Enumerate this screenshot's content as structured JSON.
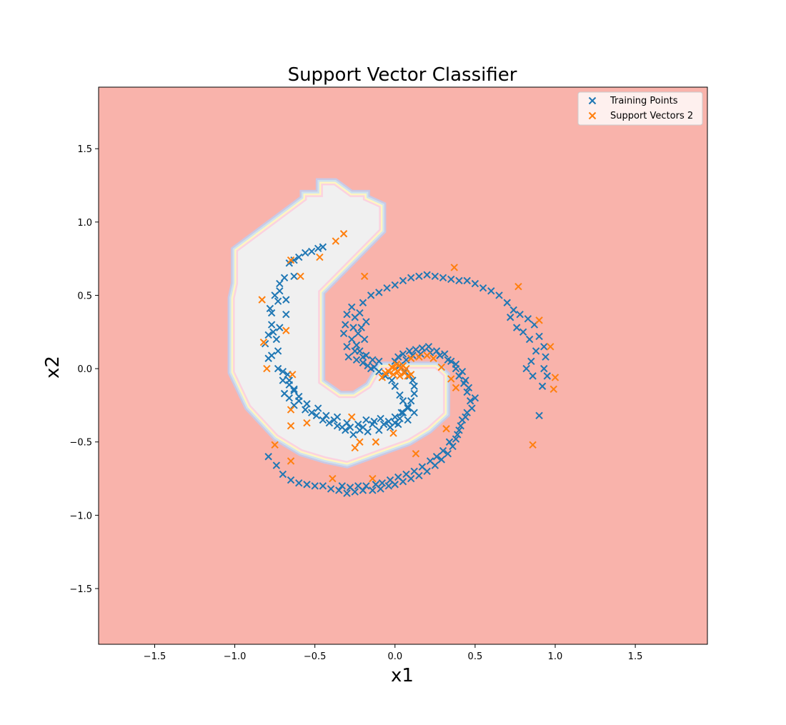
{
  "chart_data": {
    "type": "scatter",
    "title": "Support Vector Classifier",
    "xlabel": "x1",
    "ylabel": "x2",
    "xlim": [
      -1.85,
      1.95
    ],
    "ylim": [
      -1.88,
      1.92
    ],
    "xticks": [
      -1.5,
      -1.0,
      -0.5,
      0.0,
      0.5,
      1.0,
      1.5
    ],
    "yticks": [
      -1.5,
      -1.0,
      -0.5,
      0.0,
      0.5,
      1.0,
      1.5
    ],
    "xtick_labels": [
      "−1.5",
      "−1.0",
      "−0.5",
      "0.0",
      "0.5",
      "1.0",
      "1.5"
    ],
    "ytick_labels": [
      "−1.5",
      "−1.0",
      "−0.5",
      "0.0",
      "0.5",
      "1.0",
      "1.5"
    ],
    "grid": false,
    "legend_position": "top-right",
    "background_color": "#f9b3ab",
    "decision_region_color": "#f0f0f0",
    "decision_region_polygon": [
      [
        -0.98,
        0.78
      ],
      [
        -0.98,
        0.8
      ],
      [
        -0.55,
        1.15
      ],
      [
        -0.55,
        1.17
      ],
      [
        -0.45,
        1.17
      ],
      [
        -0.45,
        1.25
      ],
      [
        -0.38,
        1.25
      ],
      [
        -0.28,
        1.17
      ],
      [
        -0.2,
        1.17
      ],
      [
        -0.2,
        1.15
      ],
      [
        -0.1,
        1.1
      ],
      [
        -0.1,
        0.95
      ],
      [
        -0.48,
        0.53
      ],
      [
        -0.48,
        0.27
      ],
      [
        -0.48,
        -0.1
      ],
      [
        -0.35,
        -0.2
      ],
      [
        -0.25,
        -0.2
      ],
      [
        -0.15,
        -0.13
      ],
      [
        -0.08,
        0.0
      ],
      [
        0.25,
        0.0
      ],
      [
        0.3,
        -0.05
      ],
      [
        0.3,
        -0.3
      ],
      [
        0.2,
        -0.4
      ],
      [
        0.08,
        -0.48
      ],
      [
        -0.1,
        -0.55
      ],
      [
        -0.3,
        -0.63
      ],
      [
        -0.43,
        -0.6
      ],
      [
        -0.58,
        -0.55
      ],
      [
        -0.73,
        -0.45
      ],
      [
        -0.9,
        -0.25
      ],
      [
        -1.0,
        -0.02
      ],
      [
        -1.0,
        0.48
      ],
      [
        -0.98,
        0.58
      ]
    ],
    "series": [
      {
        "name": "Training Points",
        "color": "#1f77b4",
        "marker": "x",
        "points": [
          [
            -0.45,
            0.83
          ],
          [
            -0.48,
            0.82
          ],
          [
            -0.52,
            0.8
          ],
          [
            -0.56,
            0.79
          ],
          [
            -0.6,
            0.76
          ],
          [
            -0.63,
            0.74
          ],
          [
            -0.66,
            0.72
          ],
          [
            -0.63,
            0.63
          ],
          [
            -0.69,
            0.62
          ],
          [
            -0.72,
            0.58
          ],
          [
            -0.72,
            0.53
          ],
          [
            -0.75,
            0.5
          ],
          [
            -0.68,
            0.47
          ],
          [
            -0.73,
            0.46
          ],
          [
            -0.78,
            0.41
          ],
          [
            -0.77,
            0.38
          ],
          [
            -0.68,
            0.37
          ],
          [
            -0.77,
            0.3
          ],
          [
            -0.72,
            0.28
          ],
          [
            -0.76,
            0.25
          ],
          [
            -0.79,
            0.23
          ],
          [
            -0.74,
            0.2
          ],
          [
            -0.81,
            0.17
          ],
          [
            -0.73,
            0.12
          ],
          [
            -0.77,
            0.09
          ],
          [
            -0.79,
            0.07
          ],
          [
            -0.73,
            0.0
          ],
          [
            -0.67,
            -0.04
          ],
          [
            -0.7,
            -0.08
          ],
          [
            -0.66,
            -0.11
          ],
          [
            -0.63,
            -0.14
          ],
          [
            -0.69,
            -0.17
          ],
          [
            -0.66,
            -0.2
          ],
          [
            -0.6,
            -0.22
          ],
          [
            -0.63,
            -0.25
          ],
          [
            -0.56,
            -0.28
          ],
          [
            -0.52,
            -0.3
          ],
          [
            -0.49,
            -0.32
          ],
          [
            -0.45,
            -0.35
          ],
          [
            -0.41,
            -0.37
          ],
          [
            -0.38,
            -0.35
          ],
          [
            -0.36,
            -0.39
          ],
          [
            -0.33,
            -0.4
          ],
          [
            -0.31,
            -0.42
          ],
          [
            -0.28,
            -0.4
          ],
          [
            -0.26,
            -0.45
          ],
          [
            -0.22,
            -0.42
          ],
          [
            -0.2,
            -0.4
          ],
          [
            -0.17,
            -0.43
          ],
          [
            -0.14,
            -0.38
          ],
          [
            -0.1,
            -0.42
          ],
          [
            -0.07,
            -0.38
          ],
          [
            -0.03,
            -0.4
          ],
          [
            0.0,
            -0.37
          ],
          [
            0.03,
            -0.34
          ],
          [
            0.05,
            -0.3
          ],
          [
            0.08,
            -0.27
          ],
          [
            0.1,
            -0.22
          ],
          [
            0.12,
            -0.17
          ],
          [
            0.12,
            -0.12
          ],
          [
            0.11,
            -0.08
          ],
          [
            0.09,
            -0.05
          ],
          [
            0.06,
            -0.02
          ],
          [
            0.03,
            0.02
          ],
          [
            0.0,
            0.05
          ],
          [
            0.02,
            0.08
          ],
          [
            0.05,
            0.1
          ],
          [
            0.09,
            0.12
          ],
          [
            0.13,
            0.13
          ],
          [
            0.17,
            0.14
          ],
          [
            0.21,
            0.15
          ],
          [
            0.26,
            0.12
          ],
          [
            0.31,
            0.1
          ],
          [
            0.35,
            0.05
          ],
          [
            0.38,
            0.0
          ],
          [
            0.4,
            -0.05
          ],
          [
            0.43,
            -0.1
          ],
          [
            0.45,
            -0.16
          ],
          [
            0.47,
            -0.22
          ],
          [
            0.45,
            -0.3
          ],
          [
            0.42,
            -0.35
          ],
          [
            0.4,
            -0.42
          ],
          [
            0.38,
            -0.48
          ],
          [
            0.36,
            -0.53
          ],
          [
            0.33,
            -0.58
          ],
          [
            0.29,
            -0.62
          ],
          [
            0.25,
            -0.66
          ],
          [
            0.2,
            -0.7
          ],
          [
            0.15,
            -0.73
          ],
          [
            0.1,
            -0.75
          ],
          [
            0.05,
            -0.77
          ],
          [
            0.0,
            -0.79
          ],
          [
            -0.04,
            -0.8
          ],
          [
            -0.09,
            -0.82
          ],
          [
            -0.14,
            -0.83
          ],
          [
            -0.2,
            -0.83
          ],
          [
            -0.25,
            -0.84
          ],
          [
            -0.3,
            -0.85
          ],
          [
            -0.35,
            -0.83
          ],
          [
            -0.4,
            -0.82
          ],
          [
            -0.45,
            -0.8
          ],
          [
            -0.5,
            -0.8
          ],
          [
            -0.55,
            -0.79
          ],
          [
            -0.6,
            -0.78
          ],
          [
            -0.65,
            -0.76
          ],
          [
            -0.7,
            -0.72
          ],
          [
            -0.74,
            -0.66
          ],
          [
            -0.79,
            -0.6
          ],
          [
            -0.27,
            0.42
          ],
          [
            -0.3,
            0.37
          ],
          [
            -0.25,
            0.35
          ],
          [
            -0.31,
            0.3
          ],
          [
            -0.26,
            0.28
          ],
          [
            -0.32,
            0.24
          ],
          [
            -0.27,
            0.2
          ],
          [
            -0.3,
            0.15
          ],
          [
            -0.25,
            0.12
          ],
          [
            -0.29,
            0.08
          ],
          [
            -0.24,
            0.06
          ],
          [
            -0.2,
            0.04
          ],
          [
            -0.17,
            0.02
          ],
          [
            -0.13,
            0.01
          ],
          [
            -0.2,
            0.08
          ],
          [
            -0.15,
            0.0
          ],
          [
            -0.1,
            -0.02
          ],
          [
            -0.06,
            -0.05
          ],
          [
            -0.02,
            -0.08
          ],
          [
            0.0,
            -0.12
          ],
          [
            0.03,
            -0.18
          ],
          [
            0.05,
            -0.22
          ],
          [
            0.08,
            -0.26
          ],
          [
            0.04,
            -0.3
          ],
          [
            0.0,
            -0.33
          ],
          [
            -0.2,
            0.45
          ],
          [
            -0.15,
            0.5
          ],
          [
            -0.1,
            0.52
          ],
          [
            -0.05,
            0.55
          ],
          [
            0.0,
            0.57
          ],
          [
            0.05,
            0.6
          ],
          [
            0.1,
            0.62
          ],
          [
            0.15,
            0.63
          ],
          [
            0.2,
            0.64
          ],
          [
            0.25,
            0.63
          ],
          [
            0.3,
            0.62
          ],
          [
            0.35,
            0.61
          ],
          [
            0.4,
            0.6
          ],
          [
            0.45,
            0.6
          ],
          [
            0.5,
            0.58
          ],
          [
            0.55,
            0.55
          ],
          [
            0.6,
            0.53
          ],
          [
            0.65,
            0.5
          ],
          [
            0.7,
            0.45
          ],
          [
            0.74,
            0.4
          ],
          [
            0.78,
            0.37
          ],
          [
            0.83,
            0.34
          ],
          [
            0.87,
            0.3
          ],
          [
            0.9,
            0.22
          ],
          [
            0.93,
            0.15
          ],
          [
            0.94,
            0.08
          ],
          [
            0.93,
            0.0
          ],
          [
            0.95,
            -0.05
          ],
          [
            0.92,
            -0.12
          ],
          [
            0.9,
            -0.32
          ],
          [
            0.72,
            0.35
          ],
          [
            0.76,
            0.28
          ],
          [
            0.8,
            0.25
          ],
          [
            0.84,
            0.2
          ],
          [
            0.88,
            0.12
          ],
          [
            0.85,
            0.05
          ],
          [
            0.82,
            0.0
          ],
          [
            0.86,
            -0.05
          ],
          [
            -0.22,
            0.38
          ],
          [
            -0.18,
            0.32
          ],
          [
            -0.21,
            0.28
          ],
          [
            -0.23,
            0.24
          ],
          [
            -0.19,
            0.2
          ],
          [
            -0.24,
            0.16
          ],
          [
            -0.22,
            0.12
          ],
          [
            -0.18,
            0.09
          ],
          [
            -0.14,
            0.06
          ],
          [
            -0.1,
            0.05
          ],
          [
            0.07,
            0.06
          ],
          [
            0.11,
            0.09
          ],
          [
            0.16,
            0.1
          ],
          [
            0.22,
            0.11
          ],
          [
            0.28,
            0.09
          ],
          [
            0.33,
            0.06
          ],
          [
            0.38,
            0.03
          ],
          [
            0.42,
            -0.02
          ],
          [
            0.44,
            -0.08
          ],
          [
            0.46,
            -0.13
          ],
          [
            0.5,
            -0.2
          ],
          [
            0.48,
            -0.27
          ],
          [
            0.44,
            -0.33
          ],
          [
            0.41,
            -0.39
          ],
          [
            0.39,
            -0.45
          ],
          [
            0.34,
            -0.5
          ],
          [
            0.3,
            -0.56
          ],
          [
            0.26,
            -0.6
          ],
          [
            0.22,
            -0.63
          ],
          [
            0.17,
            -0.67
          ],
          [
            0.12,
            -0.7
          ],
          [
            0.07,
            -0.72
          ],
          [
            0.02,
            -0.74
          ],
          [
            -0.03,
            -0.76
          ],
          [
            -0.08,
            -0.78
          ],
          [
            -0.12,
            -0.79
          ],
          [
            -0.18,
            -0.8
          ],
          [
            -0.23,
            -0.8
          ],
          [
            -0.28,
            -0.81
          ],
          [
            -0.33,
            -0.8
          ],
          [
            0.12,
            -0.3
          ],
          [
            0.08,
            -0.35
          ],
          [
            0.02,
            -0.38
          ],
          [
            -0.04,
            -0.36
          ],
          [
            -0.09,
            -0.34
          ],
          [
            -0.13,
            -0.36
          ],
          [
            -0.18,
            -0.35
          ],
          [
            -0.23,
            -0.38
          ],
          [
            -0.3,
            -0.37
          ],
          [
            -0.36,
            -0.33
          ],
          [
            -0.43,
            -0.32
          ],
          [
            -0.48,
            -0.27
          ],
          [
            -0.55,
            -0.24
          ],
          [
            -0.6,
            -0.19
          ],
          [
            -0.63,
            -0.15
          ],
          [
            -0.66,
            -0.08
          ],
          [
            -0.7,
            -0.02
          ]
        ]
      },
      {
        "name": "Support Vectors 2",
        "color": "#ff7f0e",
        "marker": "x",
        "points": [
          [
            -0.32,
            0.92
          ],
          [
            -0.37,
            0.87
          ],
          [
            -0.47,
            0.76
          ],
          [
            -0.65,
            0.74
          ],
          [
            -0.59,
            0.63
          ],
          [
            -0.83,
            0.47
          ],
          [
            -0.68,
            0.26
          ],
          [
            -0.82,
            0.18
          ],
          [
            -0.8,
            0.0
          ],
          [
            -0.64,
            -0.04
          ],
          [
            -0.65,
            -0.28
          ],
          [
            -0.55,
            -0.37
          ],
          [
            -0.65,
            -0.39
          ],
          [
            -0.27,
            -0.33
          ],
          [
            -0.22,
            -0.5
          ],
          [
            -0.25,
            -0.54
          ],
          [
            -0.75,
            -0.52
          ],
          [
            -0.65,
            -0.63
          ],
          [
            -0.39,
            -0.75
          ],
          [
            -0.14,
            -0.75
          ],
          [
            -0.12,
            -0.5
          ],
          [
            -0.01,
            -0.44
          ],
          [
            0.13,
            -0.58
          ],
          [
            0.32,
            -0.41
          ],
          [
            0.29,
            0.01
          ],
          [
            0.35,
            -0.07
          ],
          [
            0.38,
            -0.13
          ],
          [
            -0.19,
            0.63
          ],
          [
            0.37,
            0.69
          ],
          [
            0.77,
            0.56
          ],
          [
            0.9,
            0.33
          ],
          [
            0.97,
            0.15
          ],
          [
            1.0,
            -0.06
          ],
          [
            0.99,
            -0.14
          ],
          [
            0.86,
            -0.52
          ],
          [
            0.0,
            0.0
          ],
          [
            0.02,
            -0.02
          ],
          [
            -0.02,
            0.01
          ],
          [
            0.04,
            0.01
          ],
          [
            -0.04,
            -0.02
          ],
          [
            0.01,
            0.03
          ],
          [
            0.06,
            -0.03
          ],
          [
            -0.06,
            -0.03
          ],
          [
            0.08,
            -0.05
          ],
          [
            0.1,
            -0.04
          ],
          [
            -0.08,
            -0.06
          ],
          [
            0.03,
            -0.05
          ],
          [
            0.05,
            0.02
          ],
          [
            -0.01,
            -0.04
          ],
          [
            0.07,
            0.0
          ],
          [
            0.1,
            0.07
          ],
          [
            0.15,
            0.08
          ],
          [
            0.2,
            0.09
          ],
          [
            0.24,
            0.07
          ]
        ]
      }
    ]
  }
}
